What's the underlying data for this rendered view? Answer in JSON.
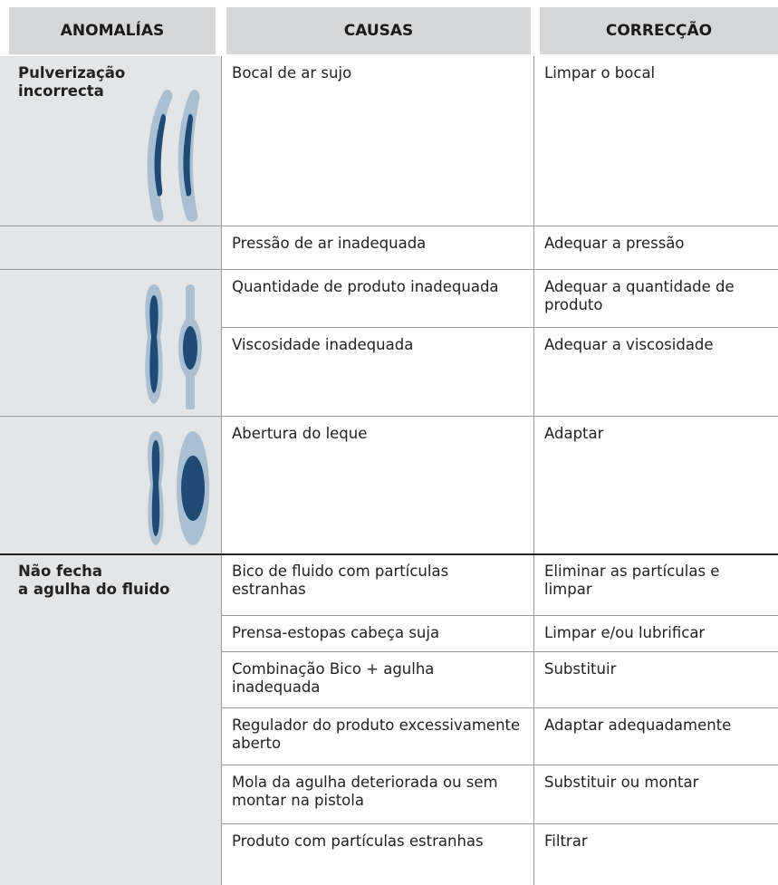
{
  "table": {
    "headers": [
      "ANOMALÍAS",
      "CAUSAS",
      "CORRECÇÃO"
    ],
    "groups": [
      {
        "anomaly": [
          "Pulverização",
          "incorrecta"
        ],
        "rows": [
          [
            "Bocal de ar sujo",
            "Limpar o bocal"
          ]
        ]
      },
      {
        "rows": [
          [
            "Pressão de ar inadequada",
            "Adequar a pressão"
          ]
        ]
      },
      {
        "rows": [
          [
            "Quantidade de produto inadequada",
            "Adequar a quantidade de produto"
          ],
          [
            "Viscosidade inadequada",
            "Adequar a viscosidade"
          ]
        ]
      },
      {
        "rows": [
          [
            "Abertura do leque",
            "Adaptar"
          ]
        ]
      },
      {
        "anomaly": [
          "Não fecha",
          "a agulha do fluido"
        ],
        "rows": [
          [
            "Bico de fluido com partículas estranhas",
            "Eliminar as partículas e limpar"
          ],
          [
            "Prensa-estopas cabeça suja",
            "Limpar e/ou lubrificar"
          ],
          [
            "Combinação Bico + agulha inadequada",
            "Substituir"
          ],
          [
            "Regulador do produto excessivamente aberto",
            "Adaptar adequadamente"
          ],
          [
            "Mola da agulha deteriorada ou sem montar na pistola",
            "Substituir ou montar"
          ],
          [
            "Produto com partículas estranhas",
            "Filtrar"
          ]
        ]
      }
    ]
  }
}
